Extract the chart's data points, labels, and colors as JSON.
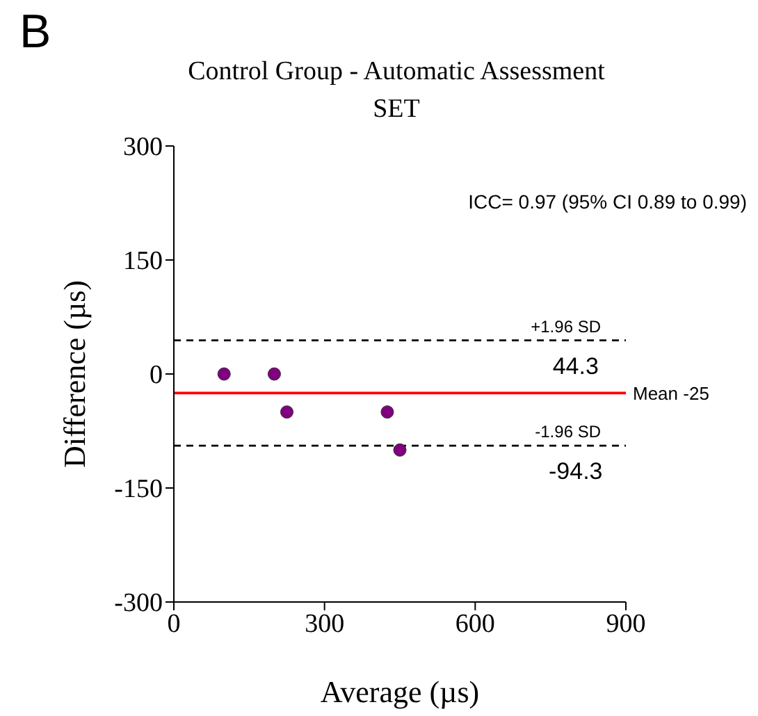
{
  "chart_data": {
    "type": "scatter",
    "title": "Control  Group - Automatic Assessment\nSET",
    "xlabel": "Average (µs)",
    "ylabel": "Difference (µs)",
    "x": [
      100,
      200,
      225,
      425,
      450
    ],
    "series": [
      {
        "color": "#800080",
        "values": [
          0,
          0,
          -50,
          -50,
          -100
        ]
      }
    ],
    "xlim": [
      0,
      900
    ],
    "xticks": [
      0,
      300,
      600,
      900
    ],
    "ylim": [
      -300,
      300
    ],
    "yticks": [
      -300,
      -150,
      0,
      150,
      300
    ],
    "grid": false,
    "legend": false,
    "marker": "circle",
    "ref_lines": [
      {
        "axis": "y",
        "value": 44.3,
        "label": "+1.96  SD",
        "color": "#000000",
        "line_style": "dashed"
      },
      {
        "axis": "y",
        "value": -25,
        "label": "Mean  -25",
        "color": "#ff0000",
        "line_style": "solid"
      },
      {
        "axis": "y",
        "value": -94.3,
        "label": "-1.96  SD",
        "color": "#000000",
        "line_style": "dashed"
      }
    ],
    "annotations": [
      "B",
      "ICC= 0.97 (95% CI 0.89 to 0.99)",
      {
        "text": "44.3",
        "x": 800,
        "y": 44.3
      },
      {
        "text": "-94.3",
        "x": 800,
        "y": -94.3
      }
    ]
  }
}
